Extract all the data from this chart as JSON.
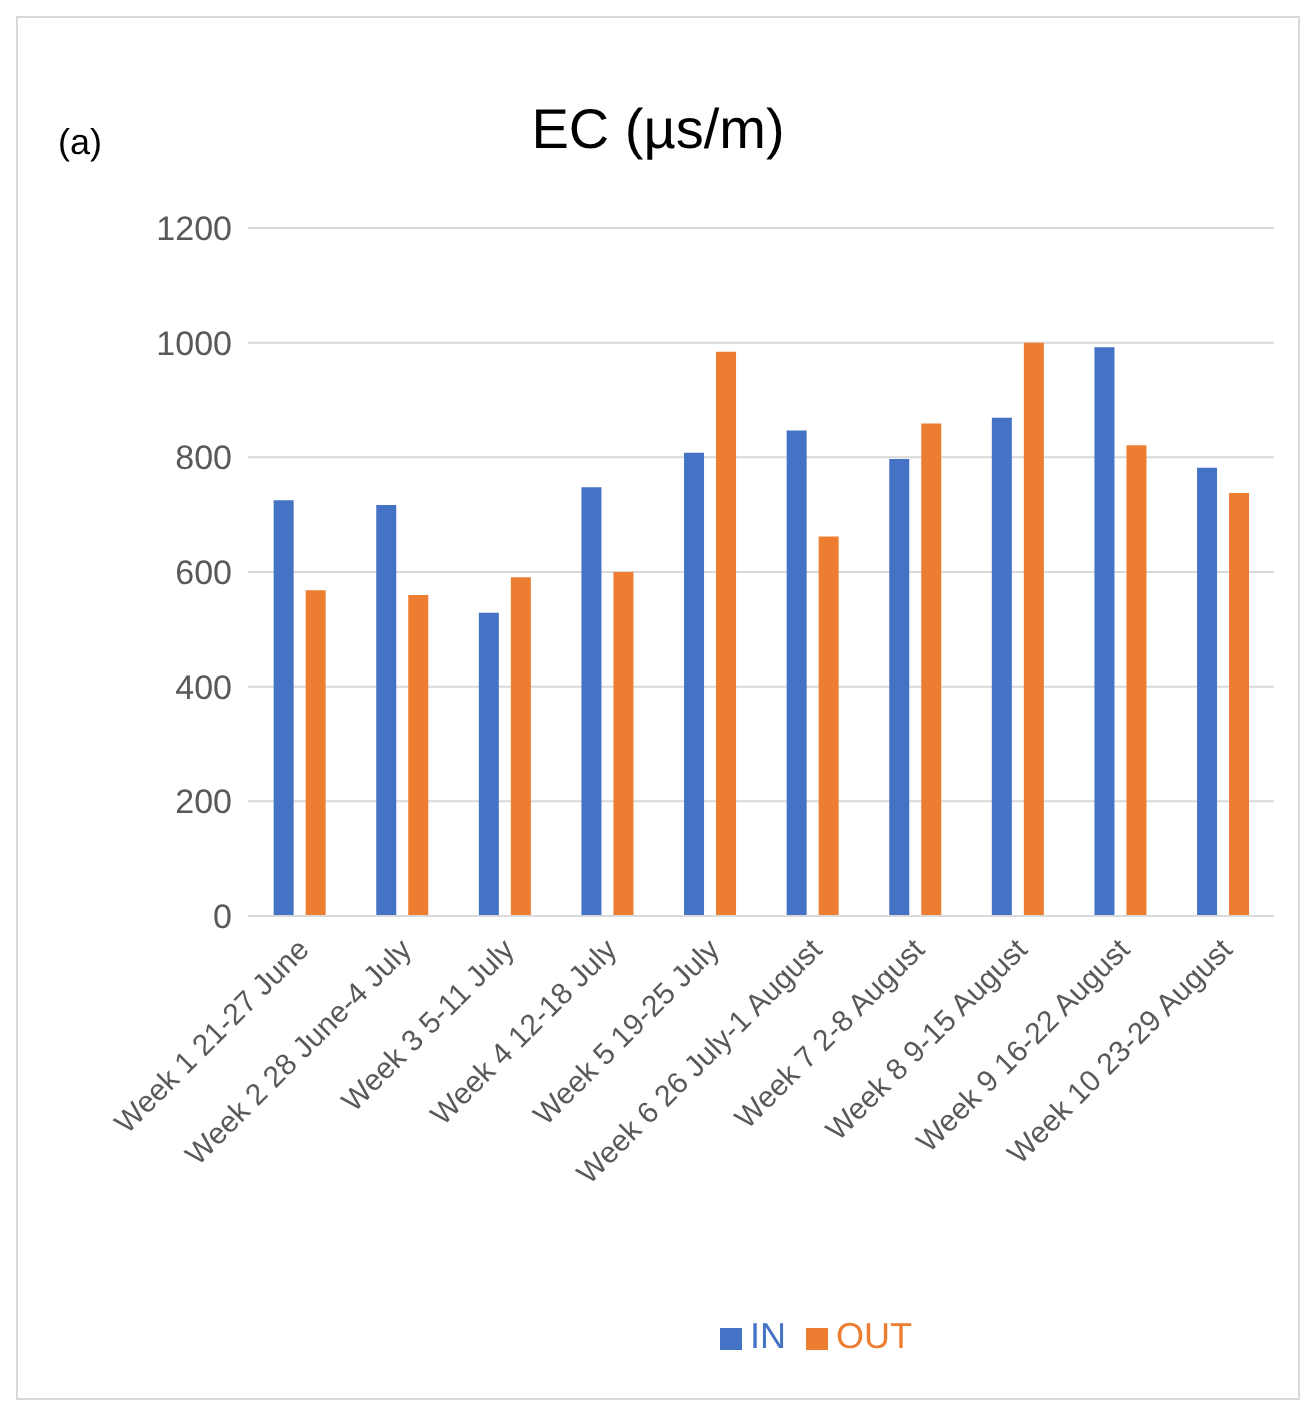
{
  "chart_data": {
    "type": "bar",
    "title": "EC (µs/m)",
    "annotations": [
      "(a)"
    ],
    "categories": [
      "Week 1 21-27 June",
      "Week 2 28 June-4 July",
      "Week 3 5-11 July",
      "Week 4 12-18 July",
      "Week 5 19-25 July",
      "Week 6 26 July-1 August",
      "Week 7 2-8 August",
      "Week 8 9-15 August",
      "Week 9 16-22 August",
      "Week 10 23-29 August"
    ],
    "series": [
      {
        "name": "IN",
        "color": "#4472c4",
        "values": [
          725,
          717,
          529,
          748,
          808,
          847,
          797,
          869,
          992,
          782
        ]
      },
      {
        "name": "OUT",
        "color": "#ed7d31",
        "values": [
          568,
          560,
          591,
          600,
          984,
          662,
          859,
          1000,
          821,
          738
        ]
      }
    ],
    "ylim": [
      0,
      1200
    ],
    "yticks": [
      0,
      200,
      400,
      600,
      800,
      1000,
      1200
    ],
    "grid": "y",
    "legend": "bottom"
  }
}
